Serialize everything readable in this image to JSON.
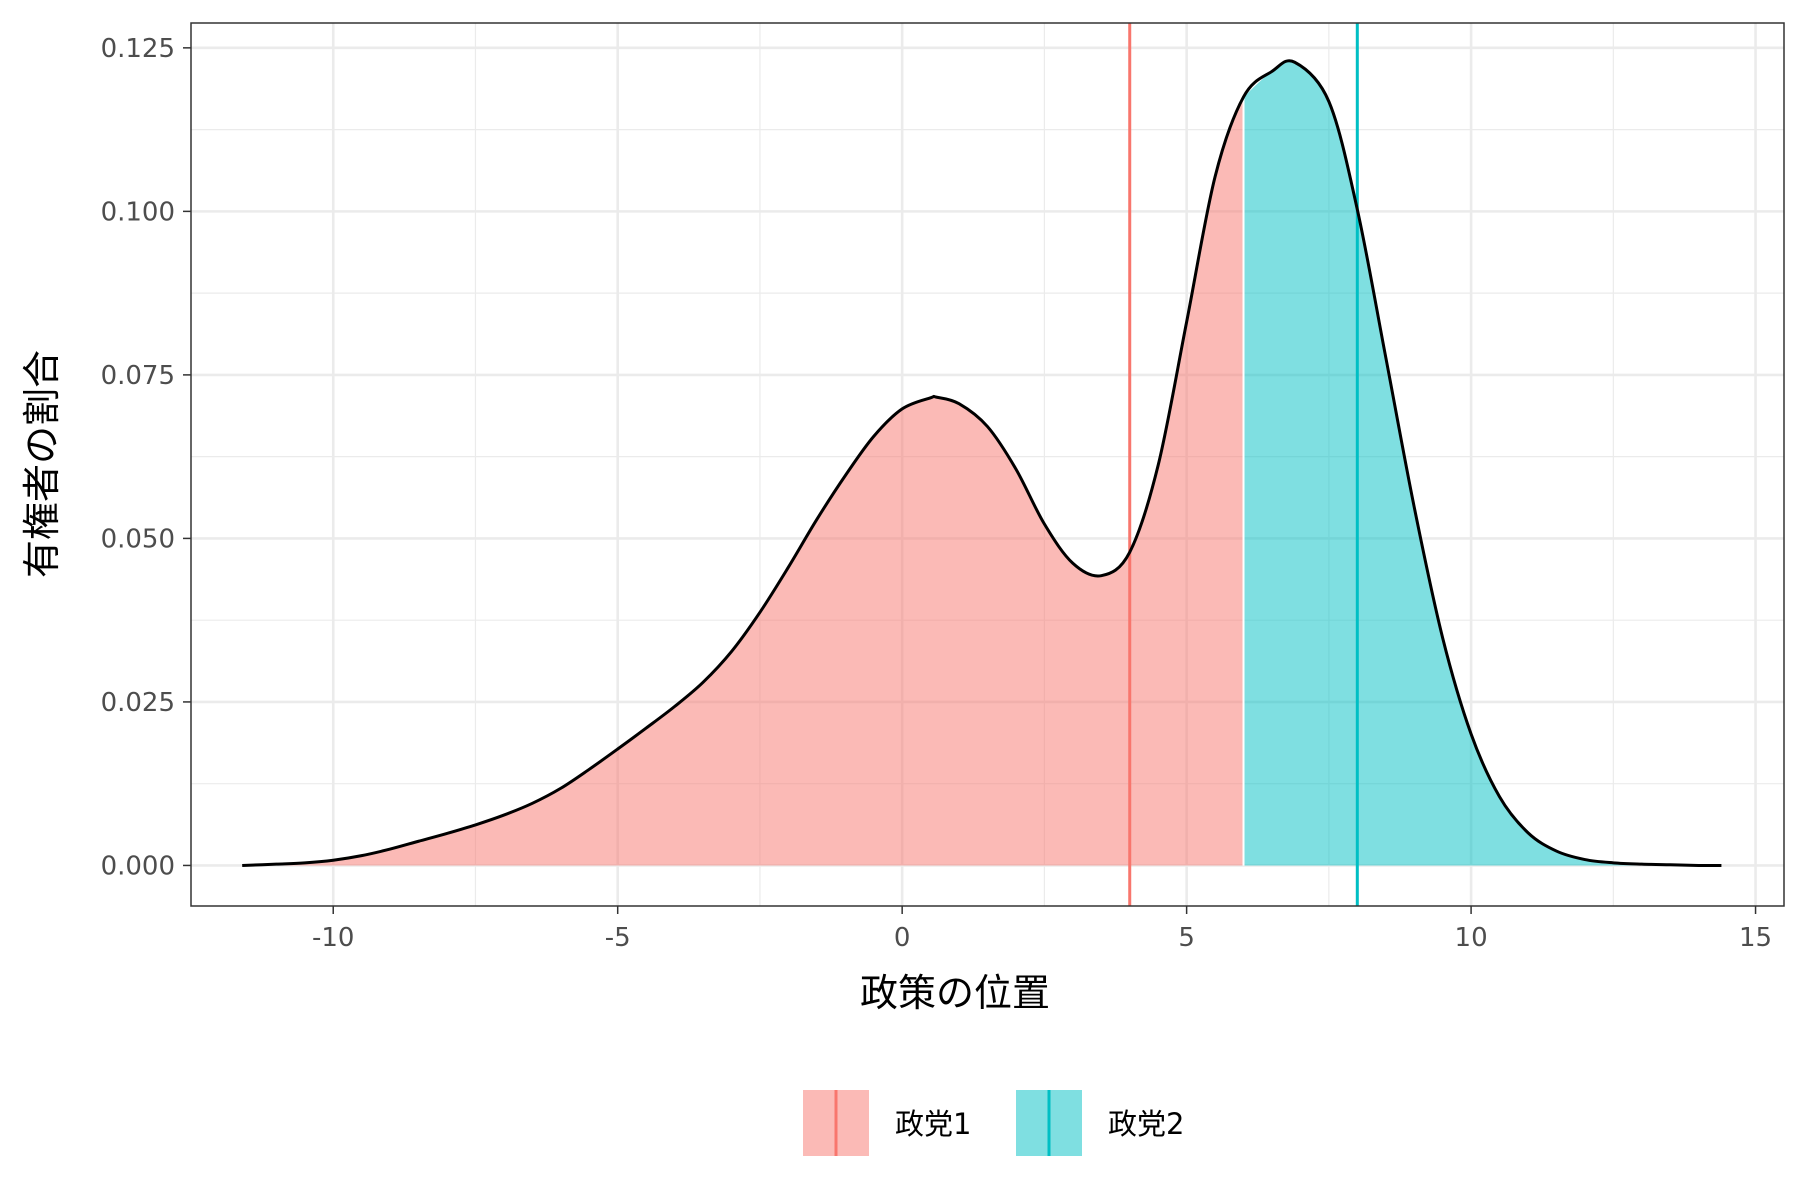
{
  "chart_data": {
    "type": "area",
    "title": "",
    "xlabel": "政策の位置",
    "ylabel": "有権者の割合",
    "xlim": [
      -12.5,
      15.5
    ],
    "ylim": [
      -0.0062,
      0.1288
    ],
    "x_ticks": [
      -10,
      -5,
      0,
      5,
      10,
      15
    ],
    "x_tick_labels": [
      "-10",
      "-5",
      "0",
      "5",
      "10",
      "15"
    ],
    "y_ticks": [
      0,
      0.025,
      0.05,
      0.075,
      0.1,
      0.125
    ],
    "y_tick_labels": [
      "0.000",
      "0.025",
      "0.050",
      "0.075",
      "0.100",
      "0.125"
    ],
    "grid": true,
    "legend_position": "bottom",
    "density": {
      "x": [
        -11.6,
        -11,
        -10.5,
        -10,
        -9.5,
        -9,
        -8.5,
        -8,
        -7.5,
        -7,
        -6.5,
        -6,
        -5.5,
        -5,
        -4.5,
        -4,
        -3.5,
        -3,
        -2.5,
        -2,
        -1.5,
        -1,
        -0.5,
        0,
        0.5,
        0.6,
        1,
        1.5,
        2,
        2.5,
        3,
        3.5,
        4,
        4.5,
        5,
        5.5,
        6,
        6.5,
        6.9,
        7.5,
        8,
        8.5,
        9,
        9.5,
        10,
        10.5,
        11,
        11.5,
        12,
        12.5,
        13,
        13.5,
        14,
        14.4
      ],
      "y": [
        0,
        0.0002,
        0.0004,
        0.0008,
        0.0015,
        0.0025,
        0.0037,
        0.0049,
        0.0062,
        0.0077,
        0.0095,
        0.0118,
        0.0147,
        0.0178,
        0.021,
        0.0243,
        0.028,
        0.0327,
        0.0387,
        0.0456,
        0.0529,
        0.0596,
        0.0656,
        0.0698,
        0.0715,
        0.0716,
        0.0706,
        0.0671,
        0.0606,
        0.0522,
        0.0462,
        0.0443,
        0.0479,
        0.0612,
        0.0831,
        0.1053,
        0.1175,
        0.1214,
        0.1228,
        0.1168,
        0.1003,
        0.0777,
        0.0548,
        0.0348,
        0.0201,
        0.0105,
        0.005,
        0.0022,
        0.0009,
        0.0004,
        0.0002,
        0.0001,
        0,
        0
      ]
    },
    "split_x": 6,
    "series": [
      {
        "name": "政党1",
        "color": "#F8766D",
        "position": 4,
        "region": [
          -11.6,
          6
        ]
      },
      {
        "name": "政党2",
        "color": "#00BFC4",
        "position": 8,
        "region": [
          6,
          14.4
        ]
      }
    ]
  }
}
